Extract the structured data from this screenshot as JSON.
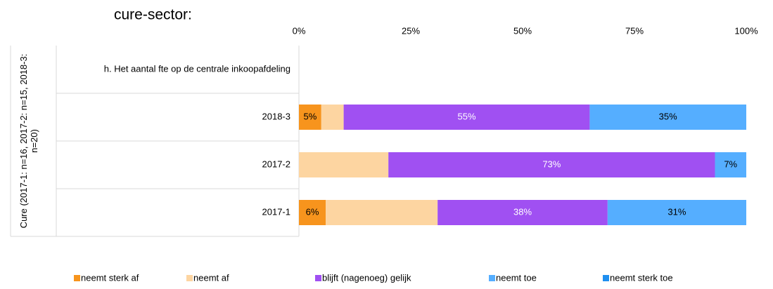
{
  "chart_data": {
    "type": "stacked-barh",
    "title": "cure-sector:",
    "group_label": "Cure (2017-1: n=16, 2017-2: n=15, 2018-3: n=20)",
    "categories": [
      "h. Het aantal fte op de centrale inkoopafdeling",
      "2018-3",
      "2017-2",
      "2017-1"
    ],
    "xlim": [
      0,
      100
    ],
    "xticks": [
      {
        "value": 0,
        "label": "0%"
      },
      {
        "value": 25,
        "label": "25%"
      },
      {
        "value": 50,
        "label": "50%"
      },
      {
        "value": 75,
        "label": "75%"
      },
      {
        "value": 100,
        "label": "100%"
      }
    ],
    "grid": false,
    "legend": "bottom",
    "series": [
      {
        "name": "neemt sterk af",
        "color": "#f7941d",
        "values": [
          null,
          5,
          0,
          6
        ],
        "value_labels": [
          null,
          "5%",
          null,
          "6%"
        ]
      },
      {
        "name": "neemt af",
        "color": "#fdd5a1",
        "values": [
          null,
          5,
          20,
          25
        ],
        "value_labels": [
          null,
          null,
          null,
          null
        ]
      },
      {
        "name": "blijft (nagenoeg) gelijk",
        "color": "#a050f2",
        "values": [
          null,
          55,
          73,
          38
        ],
        "value_labels": [
          null,
          "55%",
          "73%",
          "38%"
        ]
      },
      {
        "name": "neemt toe",
        "color": "#55aeff",
        "values": [
          null,
          35,
          7,
          31
        ],
        "value_labels": [
          null,
          "35%",
          "7%",
          "31%"
        ]
      },
      {
        "name": "neemt sterk toe",
        "color": "#1f8ff0",
        "values": [
          null,
          0,
          0,
          0
        ],
        "value_labels": [
          null,
          null,
          null,
          null
        ]
      }
    ]
  }
}
